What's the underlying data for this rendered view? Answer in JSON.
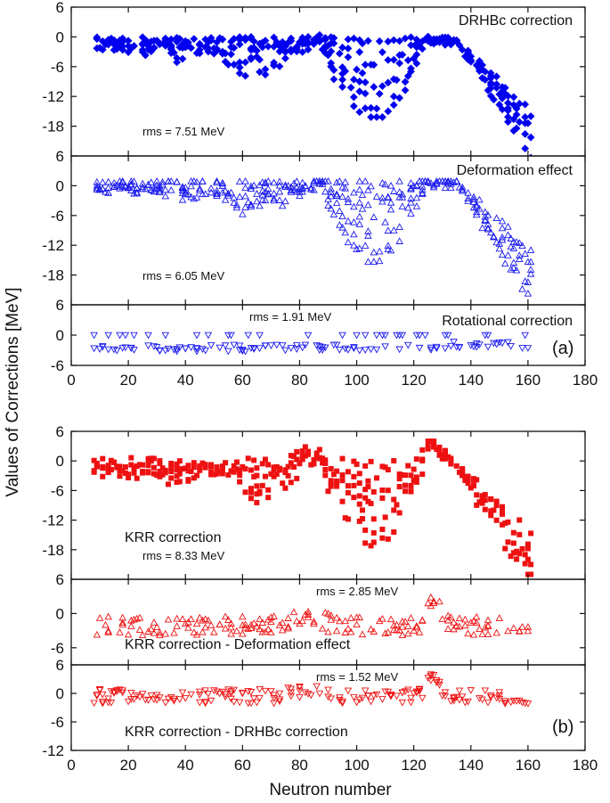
{
  "figure": {
    "ylabel": "Values of Corrections [MeV]",
    "xlabel": "Neutron number",
    "part_labels": [
      "(a)",
      "(b)"
    ]
  },
  "chart_data": [
    {
      "type": "scatter",
      "title": "DRHBc correction",
      "rms": "rms = 7.51 MeV",
      "marker": "diamond",
      "color": "#0000ee",
      "xlim": [
        0,
        180
      ],
      "ylim": [
        -24,
        6
      ],
      "yticks": [
        6,
        0,
        -6,
        -12,
        -18
      ],
      "xticks": [
        0,
        20,
        40,
        60,
        80,
        100,
        120,
        140,
        160,
        180
      ],
      "curve_key": "drhbc",
      "x": [],
      "y": []
    },
    {
      "type": "scatter",
      "title": "Deformation effect",
      "rms": "rms = 6.05 MeV",
      "marker": "triangle-up",
      "color": "#1a1aee",
      "xlim": [
        0,
        180
      ],
      "ylim": [
        -24,
        6
      ],
      "yticks": [
        6,
        0,
        -6,
        -12,
        -18
      ],
      "xticks": [
        0,
        20,
        40,
        60,
        80,
        100,
        120,
        140,
        160,
        180
      ],
      "curve_key": "deformation",
      "x": [],
      "y": []
    },
    {
      "type": "scatter",
      "title": "Rotational correction",
      "rms": "rms = 1.91 MeV",
      "marker": "triangle-down",
      "color": "#1a1aee",
      "xlim": [
        0,
        180
      ],
      "ylim": [
        -6,
        6
      ],
      "yticks": [
        6,
        0,
        -6
      ],
      "xticks": [
        0,
        20,
        40,
        60,
        80,
        100,
        120,
        140,
        160,
        180
      ],
      "xticklabels": [
        "0",
        "20",
        "40",
        "60",
        "80",
        "100",
        "120",
        "140",
        "160",
        "180"
      ],
      "curve_key": "rotational",
      "x": [],
      "y": []
    },
    {
      "type": "scatter",
      "title": "KRR correction",
      "rms": "rms = 8.33 MeV",
      "marker": "square",
      "color": "#ee1111",
      "xlim": [
        0,
        180
      ],
      "ylim": [
        -24,
        6
      ],
      "yticks": [
        6,
        0,
        -6,
        -12,
        -18
      ],
      "xticks": [
        0,
        20,
        40,
        60,
        80,
        100,
        120,
        140,
        160,
        180
      ],
      "curve_key": "krr",
      "x": [],
      "y": []
    },
    {
      "type": "scatter",
      "title": "KRR correction - Deformation effect",
      "rms": "rms = 2.85 MeV",
      "marker": "triangle-up",
      "color": "#ee1111",
      "xlim": [
        0,
        180
      ],
      "ylim": [
        -9,
        6
      ],
      "yticks": [
        6,
        0,
        -6
      ],
      "xticks": [
        0,
        20,
        40,
        60,
        80,
        100,
        120,
        140,
        160,
        180
      ],
      "curve_key": "krr_def",
      "x": [],
      "y": []
    },
    {
      "type": "scatter",
      "title": "KRR correction - DRHBc correction",
      "rms": "rms = 1.52 MeV",
      "marker": "triangle-down",
      "color": "#ee1111",
      "xlim": [
        0,
        180
      ],
      "ylim": [
        -12,
        6
      ],
      "yticks": [
        6,
        0,
        -6,
        -12
      ],
      "xticks": [
        0,
        20,
        40,
        60,
        80,
        100,
        120,
        140,
        160,
        180
      ],
      "xticklabels": [
        "0",
        "20",
        "40",
        "60",
        "80",
        "100",
        "120",
        "140",
        "160",
        "180"
      ],
      "curve_key": "krr_drhbc",
      "x": [],
      "y": []
    }
  ]
}
